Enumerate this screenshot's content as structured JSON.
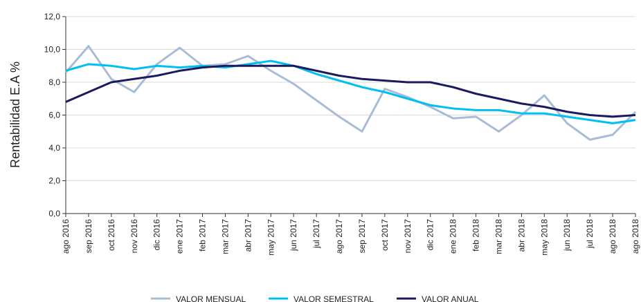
{
  "chart_data": {
    "type": "line",
    "y_label": "Rentabilidad E.A %",
    "categories": [
      "ago 2016",
      "sep 2016",
      "oct 2016",
      "nov 2016",
      "dic 2016",
      "ene 2017",
      "feb 2017",
      "mar 2017",
      "abr 2017",
      "may 2017",
      "jun 2017",
      "jul 2017",
      "ago 2017",
      "sep 2017",
      "oct 2017",
      "nov 2017",
      "dic 2017",
      "ene 2018",
      "feb 2018",
      "mar 2018",
      "abr 2018",
      "may 2018",
      "jun 2018",
      "jul 2018",
      "ago 2018",
      "ago 2018"
    ],
    "series": [
      {
        "name": "VALOR MENSUAL",
        "color": "#a9bcd6",
        "values": [
          8.6,
          10.2,
          8.2,
          7.4,
          9.1,
          10.1,
          9.0,
          9.1,
          9.6,
          8.7,
          7.9,
          6.9,
          5.9,
          5.0,
          7.6,
          7.1,
          6.5,
          5.8,
          5.9,
          5.0,
          6.0,
          7.2,
          5.5,
          4.5,
          4.8,
          6.2
        ]
      },
      {
        "name": "VALOR SEMESTRAL",
        "color": "#00bff3",
        "values": [
          8.7,
          9.1,
          9.0,
          8.8,
          9.0,
          8.9,
          9.0,
          8.9,
          9.1,
          9.3,
          9.0,
          8.5,
          8.1,
          7.7,
          7.4,
          7.0,
          6.6,
          6.4,
          6.3,
          6.3,
          6.1,
          6.1,
          5.9,
          5.7,
          5.5,
          5.7
        ]
      },
      {
        "name": "VALOR ANUAL",
        "color": "#1b1a5e",
        "values": [
          6.8,
          7.4,
          8.0,
          8.2,
          8.4,
          8.7,
          8.9,
          9.0,
          9.0,
          9.0,
          9.0,
          8.7,
          8.4,
          8.2,
          8.1,
          8.0,
          8.0,
          7.7,
          7.3,
          7.0,
          6.7,
          6.5,
          6.2,
          6.0,
          5.9,
          6.0
        ]
      }
    ],
    "ylim": [
      0,
      12
    ],
    "yticks": [
      {
        "value": 0,
        "label": "0,0"
      },
      {
        "value": 2,
        "label": "2,0"
      },
      {
        "value": 4,
        "label": "4,0"
      },
      {
        "value": 6,
        "label": "6,0"
      },
      {
        "value": 8,
        "label": "8,0"
      },
      {
        "value": 10,
        "label": "10,0"
      },
      {
        "value": 12,
        "label": "12,0"
      }
    ],
    "grid": true,
    "legend": "bottom"
  }
}
